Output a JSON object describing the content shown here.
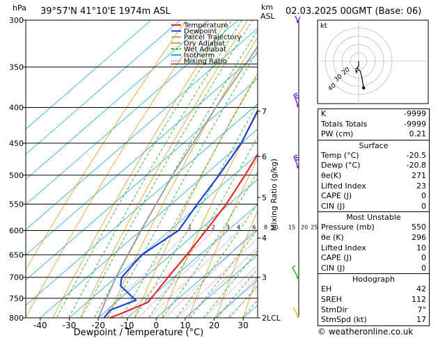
{
  "header": {
    "hpa_label": "hPa",
    "location": "39°57'N  41°10'E  1974m  ASL",
    "km_label": "km",
    "asl_label": "ASL",
    "datetime": "02.03.2025  00GMT  (Base: 06)"
  },
  "axes": {
    "xlabel": "Dewpoint / Temperature (°C)",
    "ylabel_right": "Mixing Ratio (g/kg)",
    "x_ticks": [
      -40,
      -30,
      -20,
      -10,
      0,
      10,
      20,
      30
    ],
    "p_ticks": [
      300,
      350,
      400,
      450,
      500,
      550,
      600,
      650,
      700,
      750,
      800
    ],
    "km_ticks": [
      {
        "km": "7",
        "p": 405
      },
      {
        "km": "6",
        "p": 470
      },
      {
        "km": "5",
        "p": 538
      },
      {
        "km": "4",
        "p": 615
      },
      {
        "km": "3",
        "p": 700
      },
      {
        "km": "2LCL",
        "p": 800
      }
    ],
    "mixing_ratio_labels": [
      "1",
      "2",
      "3",
      "4",
      "6",
      "8",
      "10",
      "15",
      "20",
      "25"
    ]
  },
  "legend": [
    {
      "label": "Temperature",
      "color": "#e8272a"
    },
    {
      "label": "Dewpoint",
      "color": "#1a3fd8"
    },
    {
      "label": "Parcel Trajectory",
      "color": "#a0a0a0"
    },
    {
      "label": "Dry Adiabat",
      "color": "#e89a1a"
    },
    {
      "label": "Wet Adiabat",
      "color": "#18a818"
    },
    {
      "label": "Isotherm",
      "color": "#1ca8e0"
    },
    {
      "label": "Mixing Ratio",
      "color": "#d81bd8"
    }
  ],
  "chart_data": {
    "type": "line",
    "p_range": [
      300,
      800
    ],
    "t_range": [
      -45,
      35
    ],
    "series": [
      {
        "name": "Temperature",
        "color": "#e8272a",
        "points": [
          [
            800,
            -16
          ],
          [
            790,
            -14
          ],
          [
            760,
            -9
          ],
          [
            720,
            -11
          ],
          [
            700,
            -12
          ],
          [
            650,
            -14.5
          ],
          [
            600,
            -17.5
          ],
          [
            550,
            -21
          ],
          [
            500,
            -26
          ],
          [
            450,
            -32
          ],
          [
            400,
            -39
          ],
          [
            350,
            -47
          ],
          [
            300,
            -55
          ]
        ]
      },
      {
        "name": "Dewpoint",
        "color": "#1a3fd8",
        "points": [
          [
            800,
            -18
          ],
          [
            780,
            -19
          ],
          [
            755,
            -14
          ],
          [
            720,
            -25
          ],
          [
            700,
            -28
          ],
          [
            650,
            -30
          ],
          [
            600,
            -27
          ],
          [
            550,
            -31
          ],
          [
            500,
            -35
          ],
          [
            450,
            -40
          ],
          [
            400,
            -48
          ],
          [
            350,
            -52
          ],
          [
            300,
            -59
          ]
        ]
      },
      {
        "name": "Parcel Trajectory",
        "color": "#a0a0a0",
        "points": [
          [
            800,
            -20
          ],
          [
            700,
            -30
          ],
          [
            600,
            -40
          ],
          [
            500,
            -51
          ],
          [
            400,
            -63
          ],
          [
            300,
            -77
          ]
        ]
      }
    ]
  },
  "hodograph": {
    "label": "kt",
    "ring_labels": [
      "40",
      "30",
      "20"
    ],
    "points": [
      [
        0,
        0
      ],
      [
        0,
        -3
      ],
      [
        -2,
        -5
      ],
      [
        -1,
        -4
      ],
      [
        1,
        -6
      ],
      [
        2,
        -10
      ],
      [
        3,
        -16
      ]
    ]
  },
  "indices": [
    {
      "label": "K",
      "value": "-9999"
    },
    {
      "label": "Totals Totals",
      "value": "-9999"
    },
    {
      "label": "PW (cm)",
      "value": "0.21"
    }
  ],
  "surface": {
    "title": "Surface",
    "rows": [
      {
        "label": "Temp (°C)",
        "value": "-20.5"
      },
      {
        "label": "Dewp (°C)",
        "value": "-20.8"
      },
      {
        "label": "θe(K)",
        "value": "271"
      },
      {
        "label": "Lifted Index",
        "value": "23"
      },
      {
        "label": "CAPE (J)",
        "value": "0"
      },
      {
        "label": "CIN (J)",
        "value": "0"
      }
    ]
  },
  "most_unstable": {
    "title": "Most Unstable",
    "rows": [
      {
        "label": "Pressure (mb)",
        "value": "550"
      },
      {
        "label": "θe (K)",
        "value": "296"
      },
      {
        "label": "Lifted Index",
        "value": "10"
      },
      {
        "label": "CAPE (J)",
        "value": "0"
      },
      {
        "label": "CIN (J)",
        "value": "0"
      }
    ]
  },
  "hodograph_table": {
    "title": "Hodograph",
    "rows": [
      {
        "label": "EH",
        "value": "42"
      },
      {
        "label": "SREH",
        "value": "112"
      },
      {
        "label": "StmDir",
        "value": "7°"
      },
      {
        "label": "StmSpd (kt)",
        "value": "17"
      }
    ]
  },
  "credit": "© weatheronline.co.uk"
}
